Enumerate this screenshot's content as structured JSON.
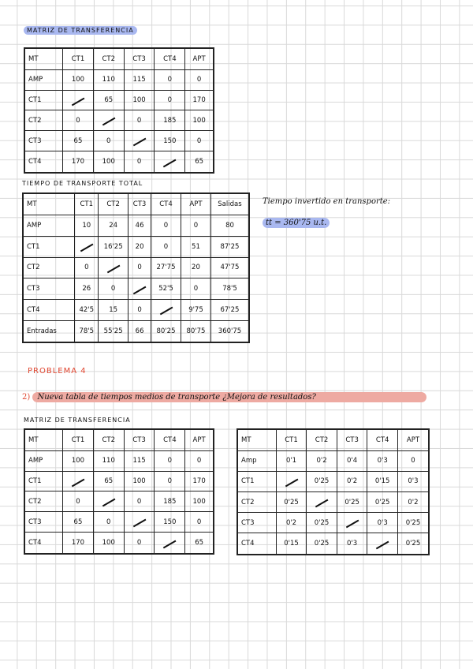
{
  "section1": {
    "title": "MATRIZ DE TRANSFERENCIA",
    "table": {
      "header": [
        "MT",
        "CT1",
        "CT2",
        "CT3",
        "CT4",
        "APT"
      ],
      "rows": [
        [
          "AMP",
          "100",
          "110",
          "115",
          "0",
          "0"
        ],
        [
          "CT1",
          "/",
          "65",
          "100",
          "0",
          "170"
        ],
        [
          "CT2",
          "0",
          "/",
          "0",
          "185",
          "100"
        ],
        [
          "CT3",
          "65",
          "0",
          "/",
          "150",
          "0"
        ],
        [
          "CT4",
          "170",
          "100",
          "0",
          "/",
          "65"
        ]
      ]
    }
  },
  "section2": {
    "title": "TIEMPO DE TRANSPORTE TOTAL",
    "table": {
      "header": [
        "MT",
        "CT1",
        "CT2",
        "CT3",
        "CT4",
        "APT",
        "Salidas"
      ],
      "rows": [
        [
          "AMP",
          "10",
          "24",
          "46",
          "0",
          "0",
          "80"
        ],
        [
          "CT1",
          "/",
          "16'25",
          "20",
          "0",
          "51",
          "87'25"
        ],
        [
          "CT2",
          "0",
          "/",
          "0",
          "27'75",
          "20",
          "47'75"
        ],
        [
          "CT3",
          "26",
          "0",
          "/",
          "52'5",
          "0",
          "78'5"
        ],
        [
          "CT4",
          "42'5",
          "15",
          "0",
          "/",
          "9'75",
          "67'25"
        ],
        [
          "Entradas",
          "78'5",
          "55'25",
          "66",
          "80'25",
          "80'75",
          "360'75"
        ]
      ]
    },
    "note_label": "Tiempo invertido en transporte:",
    "total": "tt = 360'75 u.t."
  },
  "problem": {
    "title": "PROBLEMA 4",
    "question_number": "2)",
    "question": "Nueva tabla de tiempos medios de transporte ¿Mejora de resultados?"
  },
  "section3": {
    "title": "MATRIZ DE TRANSFERENCIA",
    "table": {
      "header": [
        "MT",
        "CT1",
        "CT2",
        "CT3",
        "CT4",
        "APT"
      ],
      "rows": [
        [
          "AMP",
          "100",
          "110",
          "115",
          "0",
          "0"
        ],
        [
          "CT1",
          "/",
          "65",
          "100",
          "0",
          "170"
        ],
        [
          "CT2",
          "0",
          "/",
          "0",
          "185",
          "100"
        ],
        [
          "CT3",
          "65",
          "0",
          "/",
          "150",
          "0"
        ],
        [
          "CT4",
          "170",
          "100",
          "0",
          "/",
          "65"
        ]
      ]
    },
    "times_table": {
      "header": [
        "MT",
        "CT1",
        "CT2",
        "CT3",
        "CT4",
        "APT"
      ],
      "rows": [
        [
          "Amp",
          "0'1",
          "0'2",
          "0'4",
          "0'3",
          "0"
        ],
        [
          "CT1",
          "/",
          "0'25",
          "0'2",
          "0'15",
          "0'3"
        ],
        [
          "CT2",
          "0'25",
          "/",
          "0'25",
          "0'25",
          "0'2"
        ],
        [
          "CT3",
          "0'2",
          "0'25",
          "/",
          "0'3",
          "0'25"
        ],
        [
          "CT4",
          "0'15",
          "0'25",
          "0'3",
          "/",
          "0'25"
        ]
      ]
    }
  },
  "colors": {
    "highlight_blue": "#a9b8f0",
    "highlight_red": "#eeaaa2",
    "heading_red": "#e0452f"
  }
}
